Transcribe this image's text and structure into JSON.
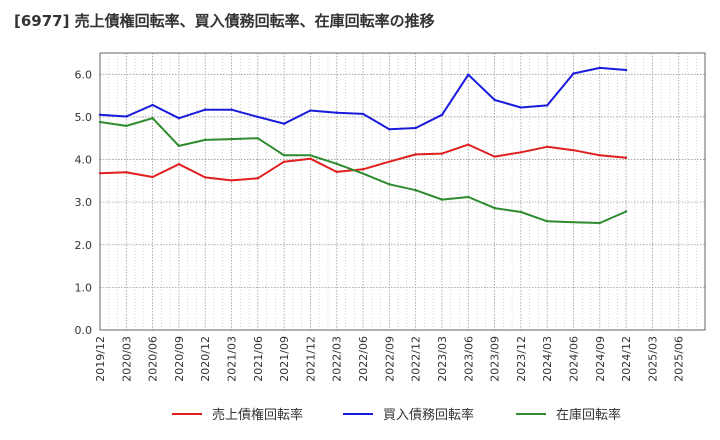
{
  "chart_data": {
    "type": "line",
    "title": "[6977]  売上債権回転率、買入債務回転率、在庫回転率の推移",
    "xlabel": "",
    "ylabel": "",
    "ylim": [
      0,
      6.5
    ],
    "yticks": [
      "0.0",
      "1.0",
      "2.0",
      "3.0",
      "4.0",
      "5.0",
      "6.0"
    ],
    "grid": true,
    "legend_position": "bottom",
    "categories": [
      "2019/12",
      "2020/03",
      "2020/06",
      "2020/09",
      "2020/12",
      "2021/03",
      "2021/06",
      "2021/09",
      "2021/12",
      "2022/03",
      "2022/06",
      "2022/09",
      "2022/12",
      "2023/03",
      "2023/06",
      "2023/09",
      "2023/12",
      "2024/03",
      "2024/06",
      "2024/09",
      "2024/12",
      "2025/03",
      "2025/06"
    ],
    "series": [
      {
        "name": "売上債権回転率",
        "color": "#e02020",
        "values": [
          3.68,
          3.7,
          3.59,
          3.89,
          3.58,
          3.51,
          3.56,
          3.95,
          4.02,
          3.71,
          3.77,
          3.95,
          4.12,
          4.14,
          4.35,
          4.07,
          4.17,
          4.3,
          4.22,
          4.1,
          4.04,
          null,
          null
        ]
      },
      {
        "name": "買入債務回転率",
        "color": "#1a1adc",
        "values": [
          5.05,
          5.01,
          5.28,
          4.97,
          5.17,
          5.17,
          5.0,
          4.84,
          5.15,
          5.1,
          5.07,
          4.71,
          4.74,
          5.05,
          5.99,
          5.4,
          5.22,
          5.27,
          6.02,
          6.15,
          6.1,
          null,
          null
        ]
      },
      {
        "name": "在庫回転率",
        "color": "#2e8b2e",
        "values": [
          4.88,
          4.79,
          4.97,
          4.32,
          4.46,
          4.48,
          4.5,
          4.1,
          4.1,
          3.9,
          3.67,
          3.42,
          3.28,
          3.06,
          3.12,
          2.86,
          2.77,
          2.55,
          2.53,
          2.51,
          2.78,
          null,
          null
        ]
      }
    ]
  }
}
